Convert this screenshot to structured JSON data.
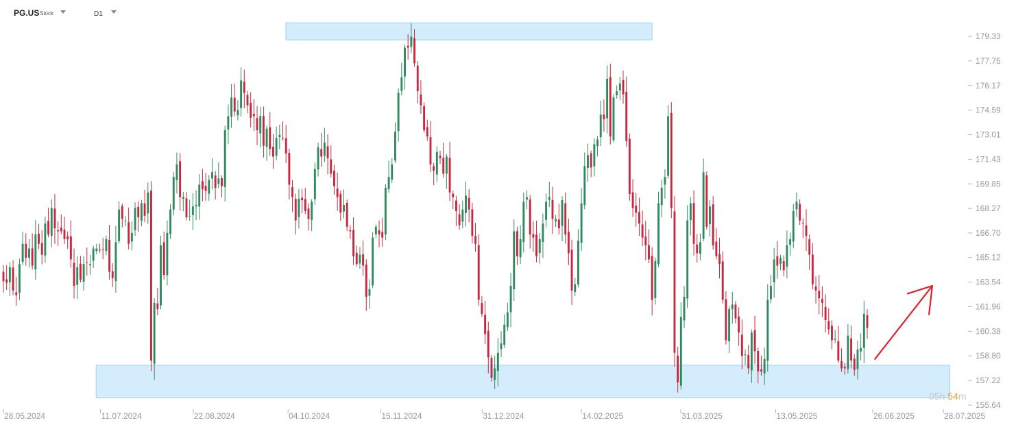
{
  "header": {
    "symbol": "PG.US",
    "asset_type": "Stock",
    "timeframe": "D1"
  },
  "countdown": {
    "prefix": "0",
    "hours": "5",
    "h_unit": "h",
    "minutes": "54",
    "m_unit": "m"
  },
  "colors": {
    "up": "#2f8a5f",
    "down": "#c8283f",
    "zone_fill": "#cfeafb",
    "zone_stroke": "#8cc8ee",
    "arrow": "#e0202c",
    "axis_text": "#999999"
  },
  "chart_data": {
    "type": "candlestick",
    "title": "",
    "xlabel": "",
    "ylabel": "",
    "y_axis_side": "right",
    "grid": false,
    "ylim": [
      155.64,
      180.1
    ],
    "x_ticks": [
      "28.05.2024",
      "11.07.2024",
      "22.08.2024",
      "04.10.2024",
      "15.11.2024",
      "31.12.2024",
      "14.02.2025",
      "31.03.2025",
      "13.05.2025",
      "26.06.2025",
      "28.07.2025"
    ],
    "y_ticks": [
      179.33,
      177.75,
      176.17,
      174.59,
      173.01,
      171.43,
      169.85,
      168.27,
      166.7,
      165.12,
      163.54,
      161.96,
      160.38,
      158.8,
      157.22,
      155.64
    ],
    "resistance_zone": {
      "from_date": "03.10.2024",
      "to_date": "18.03.2025",
      "low": 179.1,
      "high": 180.2
    },
    "support_zone": {
      "from_date": "09.07.2024",
      "to_date": "31.07.2025",
      "low": 156.1,
      "high": 158.2
    },
    "annotation": {
      "type": "arrow",
      "direction": "up",
      "from_date": "27.06.2025",
      "from_price": 158.6,
      "to_date": "23.07.2025",
      "to_price": 163.3
    },
    "closes": [
      163.6,
      163.5,
      164.5,
      163.0,
      162.7,
      164.7,
      166.0,
      165.1,
      165.7,
      164.6,
      166.6,
      166.0,
      165.3,
      167.3,
      166.6,
      168.3,
      167.0,
      166.8,
      166.8,
      166.3,
      166.3,
      165.0,
      163.3,
      164.5,
      163.7,
      164.7,
      164.8,
      164.7,
      165.7,
      165.7,
      165.6,
      165.6,
      166.3,
      164.2,
      163.8,
      166.1,
      168.2,
      167.6,
      167.5,
      166.0,
      166.7,
      168.3,
      167.7,
      168.6,
      167.8,
      169.3,
      158.5,
      162.2,
      161.8,
      165.9,
      164.0,
      166.7,
      168.2,
      170.3,
      171.1,
      169.0,
      169.0,
      167.7,
      167.8,
      168.4,
      168.5,
      169.8,
      169.5,
      169.4,
      170.1,
      170.6,
      169.6,
      170.2,
      169.7,
      173.3,
      174.2,
      175.4,
      174.5,
      174.6,
      176.5,
      175.7,
      174.9,
      174.1,
      174.2,
      173.3,
      174.2,
      172.3,
      173.4,
      172.1,
      171.6,
      172.8,
      173.0,
      172.8,
      171.8,
      169.8,
      169.0,
      167.5,
      168.9,
      168.8,
      168.1,
      167.6,
      168.7,
      170.8,
      172.2,
      171.6,
      172.5,
      171.5,
      170.5,
      169.7,
      169.0,
      168.0,
      168.5,
      167.1,
      166.8,
      165.2,
      164.7,
      165.3,
      164.6,
      162.6,
      163.1,
      166.4,
      167.1,
      166.6,
      166.4,
      169.6,
      170.3,
      171.1,
      173.2,
      175.7,
      176.7,
      178.6,
      178.6,
      179.3,
      177.6,
      175.8,
      174.9,
      173.3,
      172.9,
      171.1,
      170.7,
      171.9,
      171.5,
      170.5,
      171.6,
      169.3,
      169.0,
      168.1,
      167.2,
      168.2,
      169.1,
      168.2,
      166.5,
      166.0,
      162.4,
      161.5,
      160.2,
      158.7,
      157.4,
      158.0,
      159.0,
      159.6,
      160.8,
      161.6,
      163.3,
      166.8,
      165.2,
      166.3,
      168.7,
      169.0,
      166.6,
      166.4,
      165.2,
      166.3,
      167.3,
      168.7,
      169.0,
      167.6,
      167.6,
      167.0,
      168.8,
      166.6,
      165.4,
      163.0,
      163.4,
      166.2,
      168.6,
      171.0,
      171.7,
      170.9,
      172.4,
      172.7,
      174.3,
      174.0,
      176.6,
      172.9,
      175.4,
      175.8,
      176.3,
      175.6,
      172.6,
      169.2,
      168.3,
      168.0,
      167.3,
      166.4,
      165.9,
      165.0,
      162.4,
      164.9,
      168.6,
      169.6,
      170.3,
      174.2,
      168.3,
      159.0,
      157.1,
      161.3,
      162.6,
      167.5,
      168.6,
      166.0,
      165.4,
      166.1,
      170.6,
      167.1,
      168.4,
      165.9,
      165.2,
      164.7,
      162.4,
      159.8,
      161.8,
      162.1,
      161.2,
      160.3,
      158.8,
      158.9,
      158.0,
      160.3,
      159.1,
      157.8,
      157.8,
      158.6,
      162.4,
      163.3,
      165.0,
      164.6,
      165.1,
      164.3,
      165.9,
      166.3,
      168.1,
      168.7,
      167.5,
      167.3,
      166.5,
      165.3,
      163.4,
      163.0,
      162.5,
      162.2,
      161.1,
      160.5,
      159.8,
      159.9,
      158.5,
      158.0,
      158.0,
      160.1,
      158.5,
      157.9,
      159.2,
      159.3,
      161.5,
      160.6
    ]
  }
}
